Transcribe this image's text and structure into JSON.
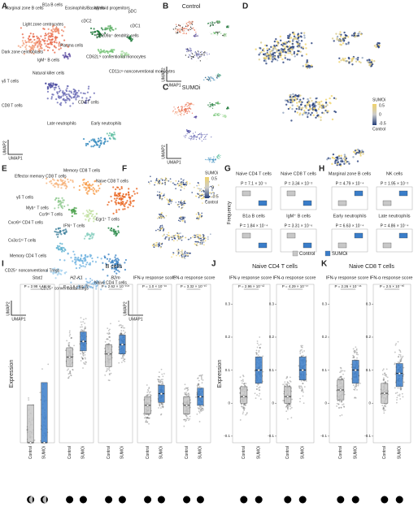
{
  "panels": {
    "A": {
      "letter": "A",
      "clusters": [
        "Marginal zone B cells",
        "B1a B cells",
        "Eosinophils/Basophils",
        "Myeloid progenitors",
        "pDC",
        "Light zone centrocytes",
        "cDC2",
        "CD209a⁺ dendritic cells",
        "cDC1",
        "Dark zone centroblasts",
        "IgM⁺ B cells",
        "Plasma cells",
        "CD62Lʰⁱ conventional monocytes",
        "Natural killer cells",
        "CD11cˡᵒ nonconventional monocytes",
        "γδ T cells",
        "CD4 T cells",
        "CD8 T cells",
        "Late neutrophils",
        "Early neutrophils"
      ],
      "axis_y": "UMAP2",
      "axis_x": "UMAP1"
    },
    "B": {
      "letter": "B",
      "title": "Control",
      "axis_y": "UMAP2",
      "axis_x": "UMAP1"
    },
    "C": {
      "letter": "C",
      "title": "SUMOi",
      "axis_y": "UMAP2",
      "axis_x": "UMAP1"
    },
    "D": {
      "letter": "D",
      "legend_title": "SUMOi",
      "legend_ticks": [
        0.5,
        0,
        -0.5
      ],
      "legend_bottom": "Control"
    },
    "E": {
      "letter": "E",
      "clusters": [
        "Effector memory CD8 T cells",
        "Memory CD8 T cells",
        "Naive CD8 T cells",
        "γδ T cells",
        "Myb⁺ T cells",
        "Ccr9ʰⁱ T cells",
        "Egr1⁺ T cells",
        "Cxcr6ʰⁱ CD4 T cells",
        "IFN⁺ T cells",
        "Cx3cr1ʰⁱ T cells",
        "Memory CD4 T cells",
        "CD25⁺ nonconventional Tregs",
        "CD25⁺ conventional Tregs",
        "Naive CD4 T cells"
      ],
      "axis_y": "UMAP2",
      "axis_x": "UMAP1"
    },
    "F": {
      "letter": "F",
      "legend_title": "SUMOi",
      "legend_ticks": [
        0.5,
        0,
        -0.5
      ],
      "legend_bottom": "Control",
      "axis_y": "UMAP2",
      "axis_x": "UMAP1"
    },
    "G": {
      "letter": "G",
      "y_label": "Frequency",
      "plots": [
        {
          "title": "Naive CD4 T cells",
          "p": "P = 7.1 × 10⁻⁵"
        },
        {
          "title": "Naive CD8 T cells",
          "p": "P = 3.34 × 10⁻²"
        },
        {
          "title": "B1a B cells",
          "p": "P = 1.84 × 10⁻⁴"
        },
        {
          "title": "IgM⁺ B cells",
          "p": "P = 3.31 × 10⁻⁶"
        }
      ]
    },
    "H": {
      "letter": "H",
      "plots": [
        {
          "title": "Marginal zone B cells",
          "p": "P = 4.79 × 10⁻⁴"
        },
        {
          "title": "NK cells",
          "p": "P = 1.95 × 10⁻²"
        },
        {
          "title": "Early neutrophils",
          "p": "P = 6.63 × 10⁻⁴"
        },
        {
          "title": "Late neutrophils",
          "p": "P = 4.86 × 10⁻⁴"
        }
      ]
    },
    "I": {
      "letter": "I",
      "title": "B cells",
      "y_label": "Expression",
      "plots": [
        {
          "title": "Stat1",
          "p": "P = 2.98 × 10⁻⁶⁷",
          "ylim": [
            0,
            5
          ],
          "groups": [
            {
              "q1": 0,
              "median": 0,
              "q3": 1.2
            },
            {
              "q1": 0,
              "median": 0,
              "q3": 1.9
            }
          ]
        },
        {
          "title": "H2-K1",
          "p": "P = 1.6 × 10⁻¹⁰⁵",
          "ylim": [
            0,
            5
          ],
          "groups": [
            {
              "q1": 2.4,
              "median": 2.7,
              "q3": 3.0
            },
            {
              "q1": 2.9,
              "median": 3.2,
              "q3": 3.5
            }
          ]
        },
        {
          "title": "B2m",
          "p": "P = 2.62 × 10⁻¹⁰⁸",
          "ylim": [
            0,
            5
          ],
          "groups": [
            {
              "q1": 2.4,
              "median": 2.8,
              "q3": 3.1
            },
            {
              "q1": 2.8,
              "median": 3.1,
              "q3": 3.4
            }
          ]
        },
        {
          "title": "IFN-γ response score",
          "p": "P = 1.0 × 10⁻¹⁶",
          "ylim": [
            -0.05,
            0.5
          ],
          "groups": [
            {
              "q1": 0.05,
              "median": 0.08,
              "q3": 0.11
            },
            {
              "q1": 0.09,
              "median": 0.12,
              "q3": 0.15
            }
          ]
        },
        {
          "title": "IFN-α response score",
          "p": "P = 3.32 × 10⁻¹⁰",
          "ylim": [
            -0.05,
            0.5
          ],
          "groups": [
            {
              "q1": 0.05,
              "median": 0.08,
              "q3": 0.11
            },
            {
              "q1": 0.08,
              "median": 0.11,
              "q3": 0.14
            }
          ]
        }
      ]
    },
    "J": {
      "letter": "J",
      "title": "Naive CD4 T cells",
      "y_label": "Expression",
      "plots": [
        {
          "title": "IFN-γ response score",
          "p": "P = 2.96 × 10⁻¹²",
          "ylim": [
            -0.12,
            0.36
          ],
          "yticks": [
            -0.1,
            0,
            0.1,
            0.2,
            0.3
          ],
          "groups": [
            {
              "q1": 0,
              "median": 0.02,
              "q3": 0.05
            },
            {
              "q1": 0.06,
              "median": 0.1,
              "q3": 0.14
            }
          ]
        },
        {
          "title": "IFN-α response score",
          "p": "P = 4.29 × 10⁻¹⁷",
          "ylim": [
            -0.12,
            0.36
          ],
          "yticks": [
            -0.1,
            0,
            0.1,
            0.2,
            0.3
          ],
          "groups": [
            {
              "q1": 0,
              "median": 0.02,
              "q3": 0.05
            },
            {
              "q1": 0.07,
              "median": 0.1,
              "q3": 0.14
            }
          ]
        }
      ]
    },
    "K": {
      "letter": "K",
      "title": "Naive CD8 T cells",
      "plots": [
        {
          "title": "IFN-γ response score",
          "p": "P = 2.26 × 10⁻⁴⁶",
          "ylim": [
            -0.12,
            0.36
          ],
          "yticks": [
            -0.1,
            0,
            0.1,
            0.2,
            0.3
          ],
          "groups": [
            {
              "q1": 0.01,
              "median": 0.04,
              "q3": 0.07
            },
            {
              "q1": 0.06,
              "median": 0.1,
              "q3": 0.13
            }
          ]
        },
        {
          "title": "IFN-α response score",
          "p": "P = 2.5 × 10⁻⁵⁰",
          "ylim": [
            -0.12,
            0.36
          ],
          "yticks": [
            -0.1,
            0,
            0.1,
            0.2,
            0.3
          ],
          "groups": [
            {
              "q1": 0,
              "median": 0.03,
              "q3": 0.06
            },
            {
              "q1": 0.05,
              "median": 0.09,
              "q3": 0.12
            }
          ]
        }
      ]
    }
  },
  "legend": {
    "items": [
      {
        "name": "Control",
        "color": "#c8c8c8"
      },
      {
        "name": "SUMOi",
        "color": "#3a7dc9"
      }
    ]
  }
}
